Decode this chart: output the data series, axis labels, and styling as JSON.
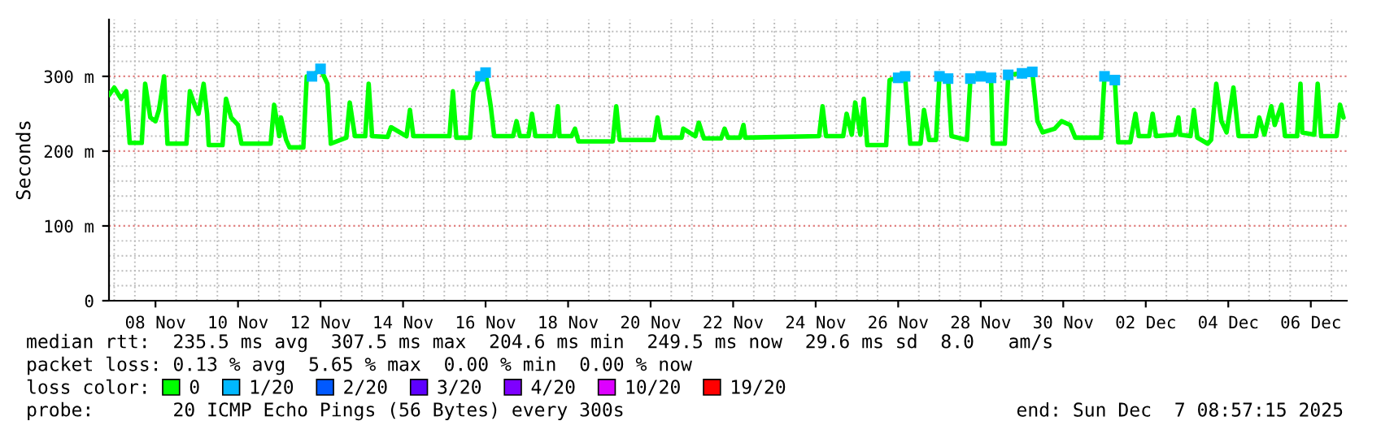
{
  "chart_data": {
    "type": "line",
    "ylabel": "Seconds",
    "legend_title": "loss color:",
    "legend": "bottom",
    "grid": true,
    "marker": "none",
    "line_style": "solid",
    "xlim": [
      "2025-11-07T08:57",
      "2025-12-07T08:57"
    ],
    "xticks": [
      {
        "value": "2025-11-08T12:00",
        "label": "08 Nov"
      },
      {
        "value": "2025-11-10T12:00",
        "label": "10 Nov"
      },
      {
        "value": "2025-11-12T12:00",
        "label": "12 Nov"
      },
      {
        "value": "2025-11-14T12:00",
        "label": "14 Nov"
      },
      {
        "value": "2025-11-16T12:00",
        "label": "16 Nov"
      },
      {
        "value": "2025-11-18T12:00",
        "label": "18 Nov"
      },
      {
        "value": "2025-11-20T12:00",
        "label": "20 Nov"
      },
      {
        "value": "2025-11-22T12:00",
        "label": "22 Nov"
      },
      {
        "value": "2025-11-24T12:00",
        "label": "24 Nov"
      },
      {
        "value": "2025-11-26T12:00",
        "label": "26 Nov"
      },
      {
        "value": "2025-11-28T12:00",
        "label": "28 Nov"
      },
      {
        "value": "2025-11-30T12:00",
        "label": "30 Nov"
      },
      {
        "value": "2025-12-02T12:00",
        "label": "02 Dec"
      },
      {
        "value": "2025-12-04T12:00",
        "label": "04 Dec"
      },
      {
        "value": "2025-12-06T12:00",
        "label": "06 Dec"
      }
    ],
    "ylim": [
      0,
      376
    ],
    "yticks": [
      0,
      {
        "value": 100,
        "label": "100 m"
      },
      {
        "value": 200,
        "label": "200 m"
      },
      {
        "value": 300,
        "label": "300 m"
      }
    ],
    "x": [
      "2025-11-07T09:00",
      "2025-11-07T12:00",
      "2025-11-07T16:00",
      "2025-11-07T19:00",
      "2025-11-07T21:00",
      "2025-11-08T04:00",
      "2025-11-08T06:00",
      "2025-11-08T09:00",
      "2025-11-08T12:00",
      "2025-11-08T14:00",
      "2025-11-08T17:00",
      "2025-11-08T19:00",
      "2025-11-09T06:00",
      "2025-11-09T08:00",
      "2025-11-09T11:00",
      "2025-11-09T13:00",
      "2025-11-09T16:00",
      "2025-11-09T18:00",
      "2025-11-09T19:00",
      "2025-11-10T03:00",
      "2025-11-10T05:00",
      "2025-11-10T08:00",
      "2025-11-10T12:00",
      "2025-11-10T14:00",
      "2025-11-11T07:00",
      "2025-11-11T09:00",
      "2025-11-11T12:00",
      "2025-11-11T13:00",
      "2025-11-11T16:00",
      "2025-11-11T18:00",
      "2025-11-12T02:00",
      "2025-11-12T04:00",
      "2025-11-12T07:00",
      "2025-11-12T12:00",
      "2025-11-12T16:00",
      "2025-11-12T18:00",
      "2025-11-13T03:00",
      "2025-11-13T05:00",
      "2025-11-13T08:00",
      "2025-11-13T14:00",
      "2025-11-13T16:00",
      "2025-11-13T18:00",
      "2025-11-14T03:00",
      "2025-11-14T05:00",
      "2025-11-14T14:00",
      "2025-11-14T16:00",
      "2025-11-14T18:00",
      "2025-11-15T15:00",
      "2025-11-15T17:00",
      "2025-11-15T19:00",
      "2025-11-16T03:00",
      "2025-11-16T05:00",
      "2025-11-16T09:00",
      "2025-11-16T12:00",
      "2025-11-16T15:00",
      "2025-11-16T17:00",
      "2025-11-17T04:00",
      "2025-11-17T06:00",
      "2025-11-17T08:00",
      "2025-11-17T13:00",
      "2025-11-17T15:00",
      "2025-11-17T17:00",
      "2025-11-18T04:00",
      "2025-11-18T06:00",
      "2025-11-18T07:00",
      "2025-11-18T14:00",
      "2025-11-18T16:00",
      "2025-11-18T18:00",
      "2025-11-19T14:00",
      "2025-11-19T16:00",
      "2025-11-19T18:00",
      "2025-11-20T14:00",
      "2025-11-20T16:00",
      "2025-11-20T18:00",
      "2025-11-21T06:00",
      "2025-11-21T07:00",
      "2025-11-21T14:00",
      "2025-11-21T16:00",
      "2025-11-21T19:00",
      "2025-11-22T05:00",
      "2025-11-22T07:00",
      "2025-11-22T09:00",
      "2025-11-22T16:00",
      "2025-11-22T18:00",
      "2025-11-22T19:00",
      "2025-11-24T14:00",
      "2025-11-24T16:00",
      "2025-11-24T18:00",
      "2025-11-25T04:00",
      "2025-11-25T06:00",
      "2025-11-25T09:00",
      "2025-11-25T11:00",
      "2025-11-25T14:00",
      "2025-11-25T16:00",
      "2025-11-25T18:00",
      "2025-11-26T05:00",
      "2025-11-26T07:00",
      "2025-11-26T12:00",
      "2025-11-26T16:00",
      "2025-11-26T19:00",
      "2025-11-27T01:00",
      "2025-11-27T03:00",
      "2025-11-27T06:00",
      "2025-11-27T10:00",
      "2025-11-27T12:00",
      "2025-11-27T17:00",
      "2025-11-27T19:00",
      "2025-11-28T04:00",
      "2025-11-28T06:00",
      "2025-11-28T12:00",
      "2025-11-28T18:00",
      "2025-11-28T19:00",
      "2025-11-29T02:00",
      "2025-11-29T04:00",
      "2025-11-29T12:00",
      "2025-11-29T18:00",
      "2025-11-29T21:00",
      "2025-11-30T00:00",
      "2025-11-30T07:00",
      "2025-11-30T11:00",
      "2025-11-30T16:00",
      "2025-11-30T19:00",
      "2025-12-01T10:00",
      "2025-12-01T12:00",
      "2025-12-01T18:00",
      "2025-12-01T20:00",
      "2025-12-02T03:00",
      "2025-12-02T06:00",
      "2025-12-02T08:00",
      "2025-12-02T14:00",
      "2025-12-02T16:00",
      "2025-12-02T18:00",
      "2025-12-03T05:00",
      "2025-12-03T07:00",
      "2025-12-03T08:00",
      "2025-12-03T14:00",
      "2025-12-03T16:00",
      "2025-12-03T18:00",
      "2025-12-04T00:00",
      "2025-12-04T02:00",
      "2025-12-04T05:00",
      "2025-12-04T08:00",
      "2025-12-04T11:00",
      "2025-12-04T15:00",
      "2025-12-04T18:00",
      "2025-12-05T04:00",
      "2025-12-05T06:00",
      "2025-12-05T09:00",
      "2025-12-05T13:00",
      "2025-12-05T15:00",
      "2025-12-05T19:00",
      "2025-12-05T21:00",
      "2025-12-06T04:00",
      "2025-12-06T06:00",
      "2025-12-06T07:00",
      "2025-12-06T14:00",
      "2025-12-06T16:00",
      "2025-12-06T18:00",
      "2025-12-07T03:00",
      "2025-12-07T05:00",
      "2025-12-07T07:00"
    ],
    "series": [
      {
        "name": "0",
        "color": "#00ff00",
        "values": [
          275,
          285,
          270,
          280,
          211,
          211,
          290,
          245,
          240,
          255,
          300,
          210,
          210,
          280,
          260,
          250,
          290,
          250,
          208,
          208,
          270,
          245,
          235,
          210,
          210,
          262,
          220,
          245,
          215,
          205,
          205,
          300,
          300,
          310,
          290,
          210,
          218,
          265,
          220,
          220,
          290,
          220,
          219,
          232,
          220,
          255,
          220,
          220,
          280,
          218,
          218,
          280,
          300,
          305,
          260,
          220,
          220,
          240,
          220,
          220,
          250,
          220,
          220,
          260,
          220,
          220,
          230,
          213,
          213,
          260,
          215,
          215,
          245,
          218,
          218,
          230,
          220,
          238,
          217,
          217,
          230,
          218,
          218,
          235,
          218,
          220,
          260,
          220,
          220,
          250,
          222,
          265,
          222,
          270,
          208,
          208,
          295,
          298,
          300,
          210,
          210,
          255,
          215,
          215,
          300,
          297,
          220,
          215,
          297,
          300,
          298,
          210,
          210,
          302,
          304,
          306,
          240,
          225,
          230,
          240,
          235,
          218,
          218,
          300,
          295,
          212,
          212,
          250,
          220,
          220,
          250,
          220,
          222,
          245,
          222,
          220,
          255,
          218,
          210,
          215,
          290,
          240,
          225,
          285,
          220,
          220,
          245,
          222,
          260,
          235,
          262,
          220,
          220,
          290,
          225,
          222,
          290,
          220,
          220,
          262,
          245
        ]
      },
      {
        "name": "1/20",
        "color": "#00b8ff",
        "type": "scatter",
        "marker": "square",
        "x": [
          "2025-11-12T07:00",
          "2025-11-12T12:00",
          "2025-11-16T09:00",
          "2025-11-16T12:00",
          "2025-11-26T12:00",
          "2025-11-26T16:00",
          "2025-11-27T12:00",
          "2025-11-27T17:00",
          "2025-11-28T06:00",
          "2025-11-28T12:00",
          "2025-11-28T18:00",
          "2025-11-29T04:00",
          "2025-11-29T12:00",
          "2025-11-29T18:00",
          "2025-12-01T12:00",
          "2025-12-01T18:00"
        ],
        "values": [
          300,
          310,
          300,
          305,
          298,
          300,
          300,
          297,
          297,
          300,
          298,
          302,
          304,
          306,
          300,
          295
        ]
      },
      {
        "name": "2/20",
        "color": "#0059ff",
        "values": [
          null,
          null,
          null,
          null,
          null,
          null,
          null,
          null,
          null,
          null,
          null,
          null,
          null,
          null,
          null,
          null,
          null,
          null,
          null,
          null,
          null,
          null,
          null,
          null,
          null,
          null,
          null,
          null,
          null,
          null,
          null,
          null,
          null,
          null,
          null,
          null,
          null,
          null,
          null,
          null,
          null,
          null,
          null,
          null,
          null,
          null,
          null,
          null,
          null,
          null,
          null,
          null,
          null,
          null,
          null,
          null,
          null,
          null,
          null,
          null,
          null,
          null,
          null,
          null,
          null,
          null,
          null,
          null,
          null,
          null,
          null,
          null,
          null,
          null,
          null,
          null,
          null,
          null,
          null,
          null,
          null,
          null,
          null,
          null,
          null,
          null,
          null,
          null,
          null,
          null,
          null,
          null,
          null,
          null,
          null,
          null,
          null,
          null,
          null,
          null,
          null,
          null,
          null,
          null,
          null,
          null,
          null,
          null,
          null,
          null,
          null,
          null,
          null,
          null,
          null,
          null,
          null,
          null,
          null,
          null,
          null,
          null,
          null,
          null,
          null,
          null,
          null,
          null,
          null,
          null,
          null,
          null,
          null,
          null,
          null,
          null,
          null,
          null,
          null,
          null,
          null,
          null,
          null,
          null,
          null,
          null,
          null,
          null,
          null,
          null,
          null,
          null,
          null,
          null,
          null,
          null,
          null,
          null,
          null,
          null,
          null
        ]
      },
      {
        "name": "3/20",
        "color": "#5e00ff",
        "values": [
          null,
          null,
          null,
          null,
          null,
          null,
          null,
          null,
          null,
          null,
          null,
          null,
          null,
          null,
          null,
          null,
          null,
          null,
          null,
          null,
          null,
          null,
          null,
          null,
          null,
          null,
          null,
          null,
          null,
          null,
          null,
          null,
          null,
          null,
          null,
          null,
          null,
          null,
          null,
          null,
          null,
          null,
          null,
          null,
          null,
          null,
          null,
          null,
          null,
          null,
          null,
          null,
          null,
          null,
          null,
          null,
          null,
          null,
          null,
          null,
          null,
          null,
          null,
          null,
          null,
          null,
          null,
          null,
          null,
          null,
          null,
          null,
          null,
          null,
          null,
          null,
          null,
          null,
          null,
          null,
          null,
          null,
          null,
          null,
          null,
          null,
          null,
          null,
          null,
          null,
          null,
          null,
          null,
          null,
          null,
          null,
          null,
          null,
          null,
          null,
          null,
          null,
          null,
          null,
          null,
          null,
          null,
          null,
          null,
          null,
          null,
          null,
          null,
          null,
          null,
          null,
          null,
          null,
          null,
          null,
          null,
          null,
          null,
          null,
          null,
          null,
          null,
          null,
          null,
          null,
          null,
          null,
          null,
          null,
          null,
          null,
          null,
          null,
          null,
          null,
          null,
          null,
          null,
          null,
          null,
          null,
          null,
          null,
          null,
          null,
          null,
          null,
          null,
          null,
          null,
          null,
          null,
          null,
          null,
          null,
          null
        ]
      },
      {
        "name": "4/20",
        "color": "#7e00ff",
        "values": [
          null,
          null,
          null,
          null,
          null,
          null,
          null,
          null,
          null,
          null,
          null,
          null,
          null,
          null,
          null,
          null,
          null,
          null,
          null,
          null,
          null,
          null,
          null,
          null,
          null,
          null,
          null,
          null,
          null,
          null,
          null,
          null,
          null,
          null,
          null,
          null,
          null,
          null,
          null,
          null,
          null,
          null,
          null,
          null,
          null,
          null,
          null,
          null,
          null,
          null,
          null,
          null,
          null,
          null,
          null,
          null,
          null,
          null,
          null,
          null,
          null,
          null,
          null,
          null,
          null,
          null,
          null,
          null,
          null,
          null,
          null,
          null,
          null,
          null,
          null,
          null,
          null,
          null,
          null,
          null,
          null,
          null,
          null,
          null,
          null,
          null,
          null,
          null,
          null,
          null,
          null,
          null,
          null,
          null,
          null,
          null,
          null,
          null,
          null,
          null,
          null,
          null,
          null,
          null,
          null,
          null,
          null,
          null,
          null,
          null,
          null,
          null,
          null,
          null,
          null,
          null,
          null,
          null,
          null,
          null,
          null,
          null,
          null,
          null,
          null,
          null,
          null,
          null,
          null,
          null,
          null,
          null,
          null,
          null,
          null,
          null,
          null,
          null,
          null,
          null,
          null,
          null,
          null,
          null,
          null,
          null,
          null,
          null,
          null,
          null,
          null,
          null,
          null,
          null,
          null,
          null,
          null,
          null,
          null,
          null,
          null
        ]
      },
      {
        "name": "10/20",
        "color": "#dd00ff",
        "values": [
          null,
          null,
          null,
          null,
          null,
          null,
          null,
          null,
          null,
          null,
          null,
          null,
          null,
          null,
          null,
          null,
          null,
          null,
          null,
          null,
          null,
          null,
          null,
          null,
          null,
          null,
          null,
          null,
          null,
          null,
          null,
          null,
          null,
          null,
          null,
          null,
          null,
          null,
          null,
          null,
          null,
          null,
          null,
          null,
          null,
          null,
          null,
          null,
          null,
          null,
          null,
          null,
          null,
          null,
          null,
          null,
          null,
          null,
          null,
          null,
          null,
          null,
          null,
          null,
          null,
          null,
          null,
          null,
          null,
          null,
          null,
          null,
          null,
          null,
          null,
          null,
          null,
          null,
          null,
          null,
          null,
          null,
          null,
          null,
          null,
          null,
          null,
          null,
          null,
          null,
          null,
          null,
          null,
          null,
          null,
          null,
          null,
          null,
          null,
          null,
          null,
          null,
          null,
          null,
          null,
          null,
          null,
          null,
          null,
          null,
          null,
          null,
          null,
          null,
          null,
          null,
          null,
          null,
          null,
          null,
          null,
          null,
          null,
          null,
          null,
          null,
          null,
          null,
          null,
          null,
          null,
          null,
          null,
          null,
          null,
          null,
          null,
          null,
          null,
          null,
          null,
          null,
          null,
          null,
          null,
          null,
          null,
          null,
          null,
          null,
          null,
          null,
          null,
          null,
          null,
          null,
          null,
          null,
          null,
          null,
          null
        ]
      },
      {
        "name": "19/20",
        "color": "#ff0000",
        "values": [
          null,
          null,
          null,
          null,
          null,
          null,
          null,
          null,
          null,
          null,
          null,
          null,
          null,
          null,
          null,
          null,
          null,
          null,
          null,
          null,
          null,
          null,
          null,
          null,
          null,
          null,
          null,
          null,
          null,
          null,
          null,
          null,
          null,
          null,
          null,
          null,
          null,
          null,
          null,
          null,
          null,
          null,
          null,
          null,
          null,
          null,
          null,
          null,
          null,
          null,
          null,
          null,
          null,
          null,
          null,
          null,
          null,
          null,
          null,
          null,
          null,
          null,
          null,
          null,
          null,
          null,
          null,
          null,
          null,
          null,
          null,
          null,
          null,
          null,
          null,
          null,
          null,
          null,
          null,
          null,
          null,
          null,
          null,
          null,
          null,
          null,
          null,
          null,
          null,
          null,
          null,
          null,
          null,
          null,
          null,
          null,
          null,
          null,
          null,
          null,
          null,
          null,
          null,
          null,
          null,
          null,
          null,
          null,
          null,
          null,
          null,
          null,
          null,
          null,
          null,
          null,
          null,
          null,
          null,
          null,
          null,
          null,
          null,
          null,
          null,
          null,
          null,
          null,
          null,
          null,
          null,
          null,
          null,
          null,
          null,
          null,
          null,
          null,
          null,
          null,
          null,
          null,
          null,
          null,
          null,
          null,
          null,
          null,
          null,
          null,
          null,
          null,
          null,
          null,
          null,
          null,
          null,
          null,
          null,
          null,
          null
        ]
      }
    ],
    "annotations": [
      "median rtt:  235.5 ms avg  307.5 ms max  204.6 ms min  249.5 ms now  29.6 ms sd  8.0   am/s",
      "packet loss: 0.13 % avg  5.65 % max  0.00 % min  0.00 % now",
      "probe:       20 ICMP Echo Pings (56 Bytes) every 300s",
      "end: Sun Dec  7 08:57:15 2025"
    ]
  }
}
